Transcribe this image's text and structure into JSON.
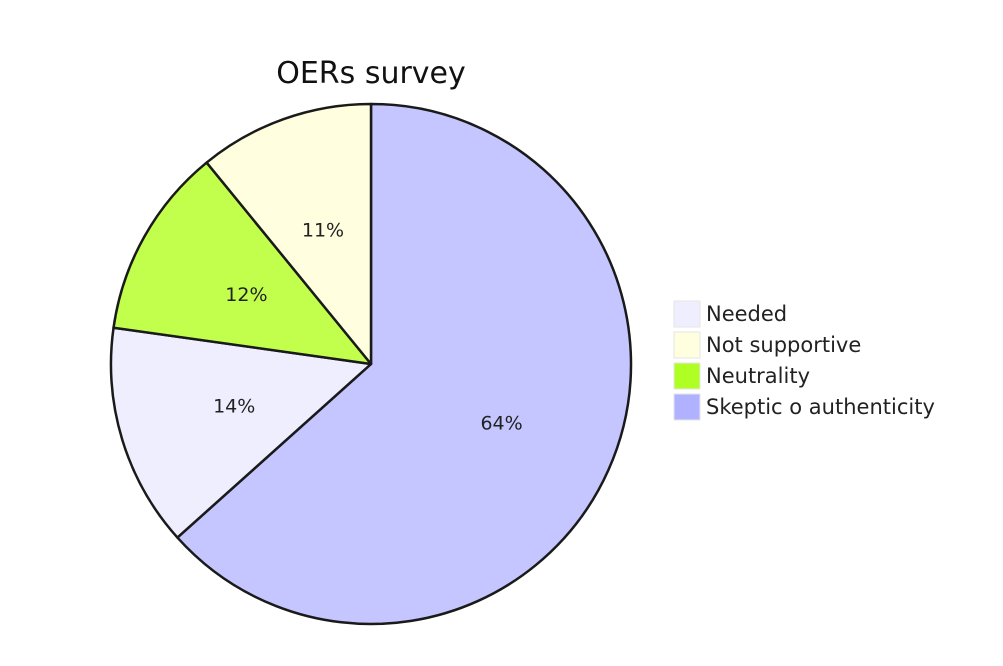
{
  "chart_data": {
    "type": "pie",
    "title": "OERs survey",
    "slices": [
      {
        "label": "Skeptic o authenticity",
        "value": 64,
        "display": "64%",
        "color": "#c5c6ff"
      },
      {
        "label": "Needed",
        "value": 14,
        "display": "14%",
        "color": "#eeeeff"
      },
      {
        "label": "Neutrality",
        "value": 12,
        "display": "12%",
        "color": "#c2ff4d"
      },
      {
        "label": "Not supportive",
        "value": 11,
        "display": "11%",
        "color": "#ffffe0"
      }
    ],
    "legend": {
      "placement": "right",
      "entries": [
        {
          "label": "Needed",
          "color": "#eeeeff"
        },
        {
          "label": "Not supportive",
          "color": "#ffffe0"
        },
        {
          "label": "Neutrality",
          "color": "#b0ff24"
        },
        {
          "label": "Skeptic o authenticity",
          "color": "#b0b2ff"
        }
      ]
    }
  }
}
